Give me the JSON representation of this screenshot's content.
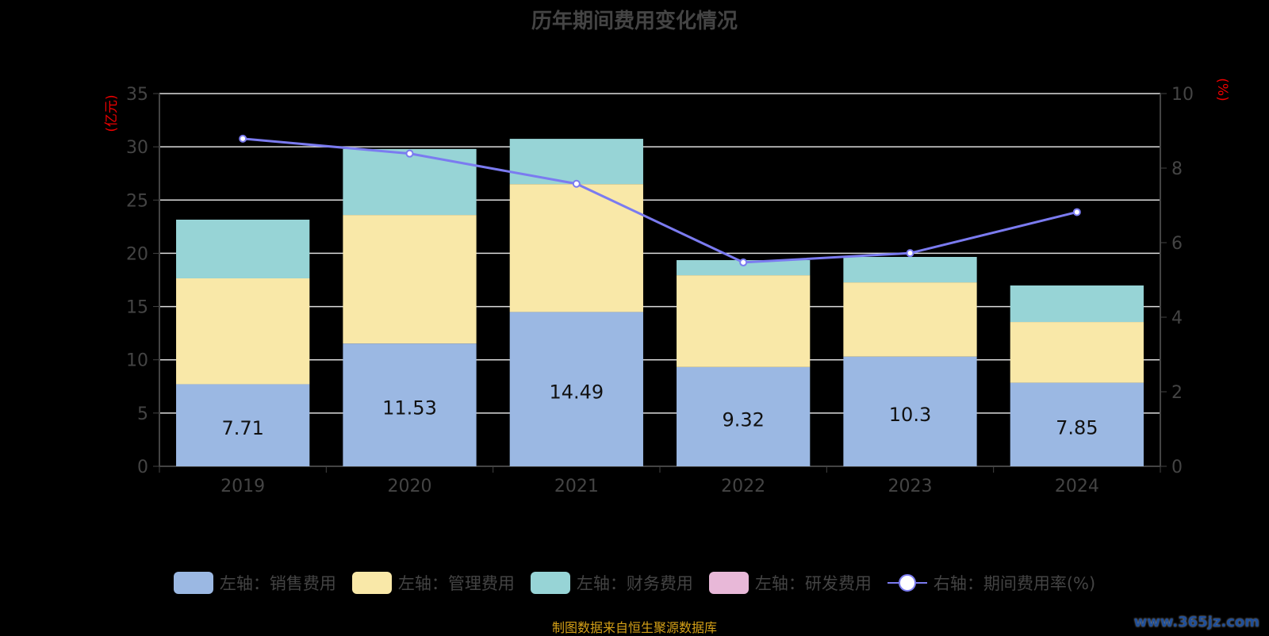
{
  "chart_data": {
    "type": "bar",
    "title": "历年期间费用变化情况",
    "categories": [
      "2019",
      "2020",
      "2021",
      "2022",
      "2023",
      "2024"
    ],
    "ylabel": "(亿元)",
    "y2label": "(%)",
    "ylim": [
      0,
      35
    ],
    "yticks": [
      0,
      5,
      10,
      15,
      20,
      25,
      30,
      35
    ],
    "y2lim": [
      0,
      10
    ],
    "y2ticks": [
      0,
      2,
      4,
      6,
      8,
      10
    ],
    "grid": true,
    "legend_position": "bottom",
    "series": [
      {
        "name": "左轴：销售费用",
        "color": "#9bb8e3",
        "values": [
          7.71,
          11.53,
          14.49,
          9.32,
          10.3,
          7.85
        ],
        "labels": [
          "7.71",
          "11.53",
          "14.49",
          "9.32",
          "10.3",
          "7.85"
        ]
      },
      {
        "name": "左轴：管理费用",
        "color": "#f9e8a8",
        "values": [
          9.94,
          12.07,
          12.01,
          8.62,
          6.97,
          5.7
        ]
      },
      {
        "name": "左轴：财务费用",
        "color": "#97d4d6",
        "values": [
          5.51,
          6.2,
          4.25,
          1.42,
          2.39,
          3.43
        ]
      },
      {
        "name": "左轴：研发费用",
        "color": "#e8b8d8",
        "values": [
          0,
          0,
          0,
          0,
          0,
          0
        ]
      }
    ],
    "line": {
      "name": "右轴：期间费用率(%)",
      "color": "#7b7bf0",
      "values": [
        8.79,
        8.39,
        7.58,
        5.47,
        5.72,
        6.82
      ]
    }
  },
  "source": "制图数据来自恒生聚源数据库",
  "watermark": "www.365jz.com"
}
